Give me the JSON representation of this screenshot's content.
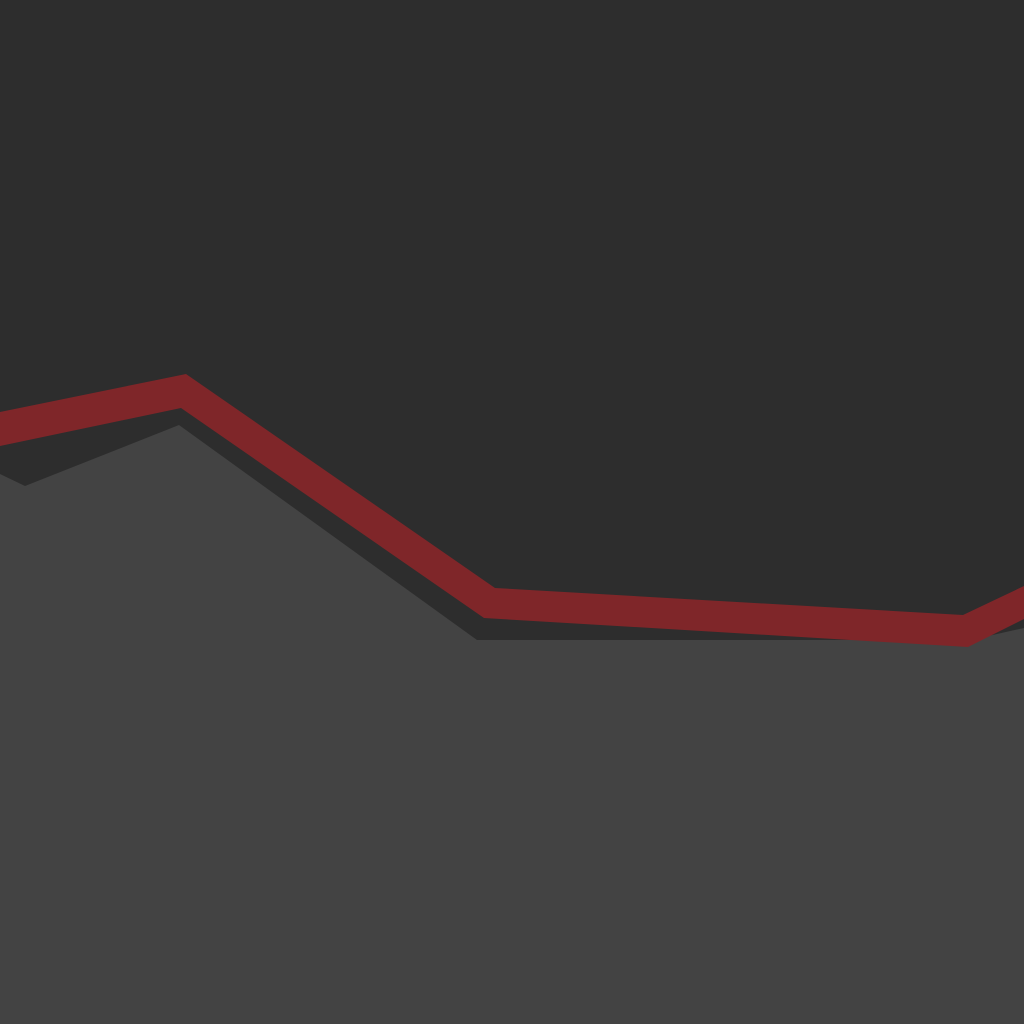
{
  "scene": {
    "description_visible_text": "",
    "colors": {
      "background": "#2d2d2d",
      "terrain": "#434343",
      "band": "#7f2629"
    }
  }
}
